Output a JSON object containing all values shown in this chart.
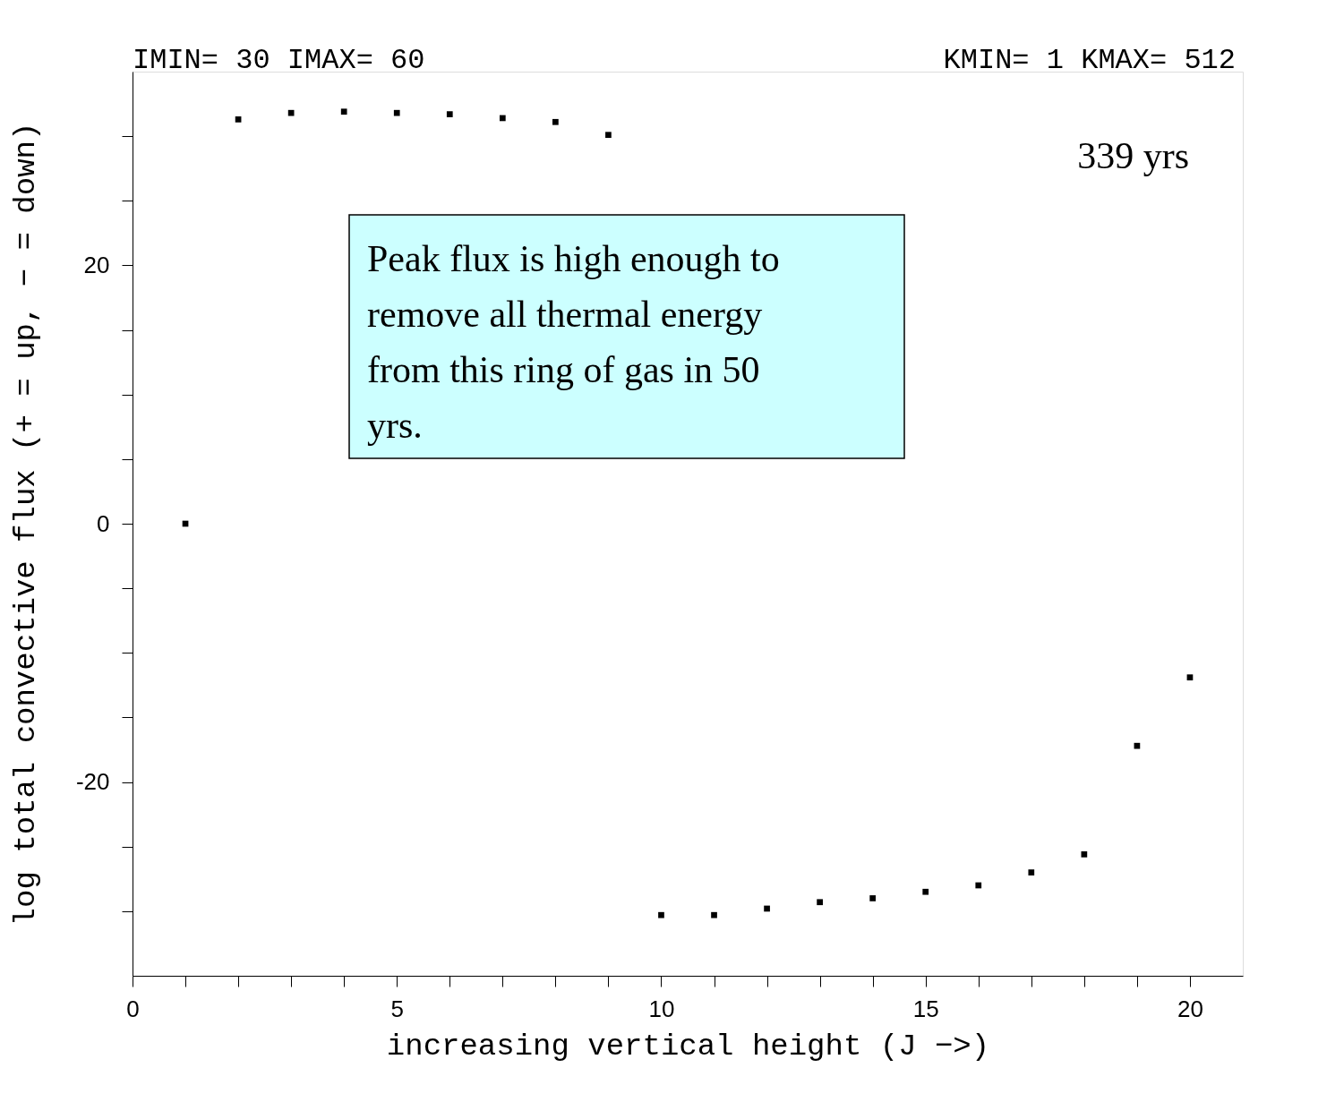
{
  "chart_data": {
    "type": "scatter",
    "xlabel": "increasing vertical height (J −>)",
    "ylabel": "log total convective flux (+ = up, − = down)",
    "x": [
      1,
      2,
      3,
      4,
      5,
      6,
      7,
      8,
      9,
      10,
      11,
      12,
      13,
      14,
      15,
      16,
      17,
      18,
      19,
      20
    ],
    "series": [
      {
        "color": "#000000",
        "values": [
          0,
          31.3,
          31.8,
          31.9,
          31.8,
          31.7,
          31.4,
          31.1,
          30.1,
          -30.3,
          -30.3,
          -29.8,
          -29.3,
          -29.0,
          -28.5,
          -28.0,
          -27.0,
          -25.6,
          -17.2,
          -11.9
        ]
      }
    ],
    "xlim": [
      0,
      21
    ],
    "ylim": [
      -35,
      35
    ],
    "xticks": [
      0,
      {
        "value": 1,
        "label": null
      },
      {
        "value": 2,
        "label": null
      },
      {
        "value": 3,
        "label": null
      },
      {
        "value": 4,
        "label": null
      },
      5,
      {
        "value": 6,
        "label": null
      },
      {
        "value": 7,
        "label": null
      },
      {
        "value": 8,
        "label": null
      },
      {
        "value": 9,
        "label": null
      },
      10,
      {
        "value": 11,
        "label": null
      },
      {
        "value": 12,
        "label": null
      },
      {
        "value": 13,
        "label": null
      },
      {
        "value": 14,
        "label": null
      },
      15,
      {
        "value": 16,
        "label": null
      },
      {
        "value": 17,
        "label": null
      },
      {
        "value": 18,
        "label": null
      },
      {
        "value": 19,
        "label": null
      },
      20
    ],
    "yticks": [
      {
        "value": -30,
        "label": null
      },
      {
        "value": -25,
        "label": null
      },
      -20,
      {
        "value": -15,
        "label": null
      },
      {
        "value": -10,
        "label": null
      },
      {
        "value": -5,
        "label": null
      },
      0,
      {
        "value": 5,
        "label": null
      },
      {
        "value": 10,
        "label": null
      },
      {
        "value": 15,
        "label": null
      },
      20,
      {
        "value": 25,
        "label": null
      },
      {
        "value": 30,
        "label": null
      }
    ],
    "marker": "square",
    "grid": false,
    "annotations": [
      "IMIN=  30 IMAX=  60",
      "KMIN=   1 KMAX= 512",
      "339 yrs",
      "Peak flux is high enough to remove all thermal energy from this ring of gas in 50 yrs."
    ]
  }
}
